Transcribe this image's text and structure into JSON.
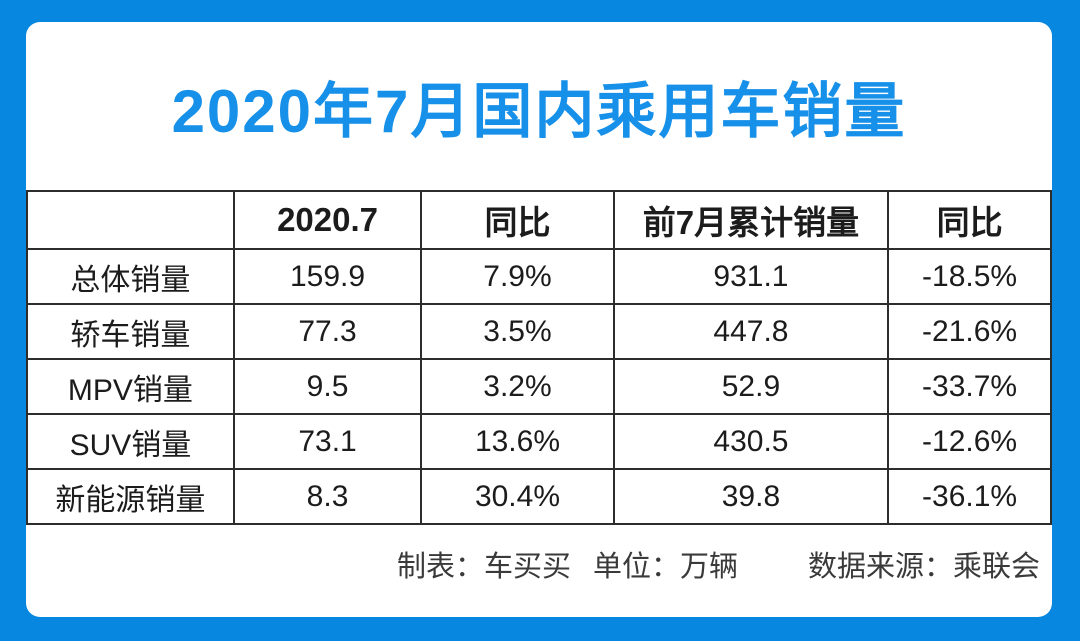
{
  "page_title": "2020年7月国内乘用车销量",
  "colors": {
    "frame_blue": "#0787df",
    "title_blue": "#1690e8",
    "table_border": "#2d2d2d",
    "cell_text": "#1c1c1c",
    "footer_text": "#3a3a3a",
    "card_background": "#ffffff"
  },
  "chart_data": {
    "type": "table",
    "title": "2020年7月国内乘用车销量",
    "unit_note": "单位：万辆",
    "columns": [
      "",
      "2020.7",
      "同比",
      "前7月累计销量",
      "同比"
    ],
    "rows": [
      [
        "总体销量",
        "159.9",
        "7.9%",
        "931.1",
        "-18.5%"
      ],
      [
        "轿车销量",
        "77.3",
        "3.5%",
        "447.8",
        "-21.6%"
      ],
      [
        "MPV销量",
        "9.5",
        "3.2%",
        "52.9",
        "-33.7%"
      ],
      [
        "SUV销量",
        "73.1",
        "13.6%",
        "430.5",
        "-12.6%"
      ],
      [
        "新能源销量",
        "8.3",
        "30.4%",
        "39.8",
        "-36.1%"
      ]
    ]
  },
  "footer": {
    "maker": "制表：车买买",
    "unit": "单位：万辆",
    "source": "数据来源：乘联会"
  }
}
